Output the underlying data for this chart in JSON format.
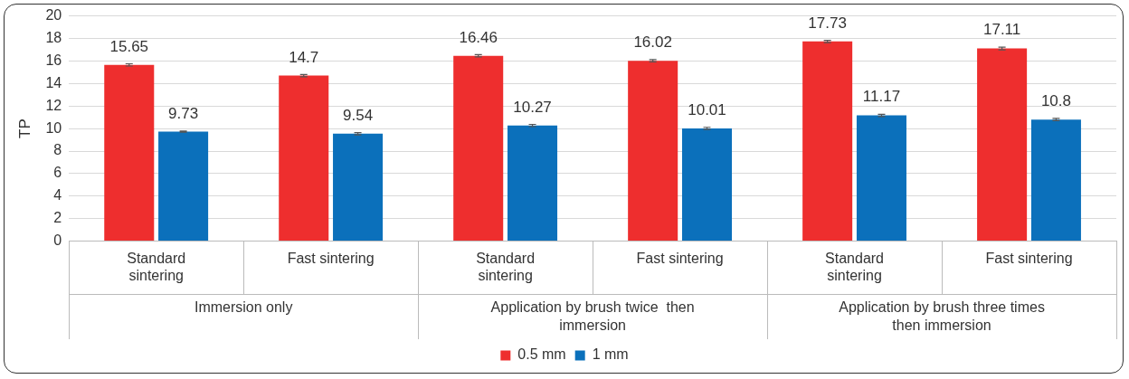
{
  "chart_data": {
    "type": "bar",
    "ylabel": "TP",
    "categories": [
      "Standard sintering",
      "Fast sintering",
      "Standard sintering",
      "Fast sintering",
      "Standard sintering",
      "Fast sintering"
    ],
    "series": [
      {
        "name": "0.5 mm",
        "color": "#ee2e2e",
        "values": [
          15.65,
          14.7,
          16.46,
          16.02,
          17.73,
          17.11
        ],
        "errors": [
          0.1,
          0.1,
          0.1,
          0.1,
          0.1,
          0.12
        ]
      },
      {
        "name": "1 mm",
        "color": "#0b70bb",
        "values": [
          9.73,
          9.54,
          10.27,
          10.01,
          11.17,
          10.8
        ],
        "errors": [
          0.05,
          0.1,
          0.1,
          0.1,
          0.1,
          0.1
        ]
      }
    ],
    "annotations": [
      "Immersion only",
      "Application by brush twice  then immersion",
      "Application by brush three times then immersion"
    ],
    "ylim": [
      0,
      20
    ],
    "yticks": [
      0,
      2,
      4,
      6,
      8,
      10,
      12,
      14,
      16,
      18,
      20
    ],
    "grid": "y",
    "data_labels": true,
    "legend": "bottom"
  }
}
